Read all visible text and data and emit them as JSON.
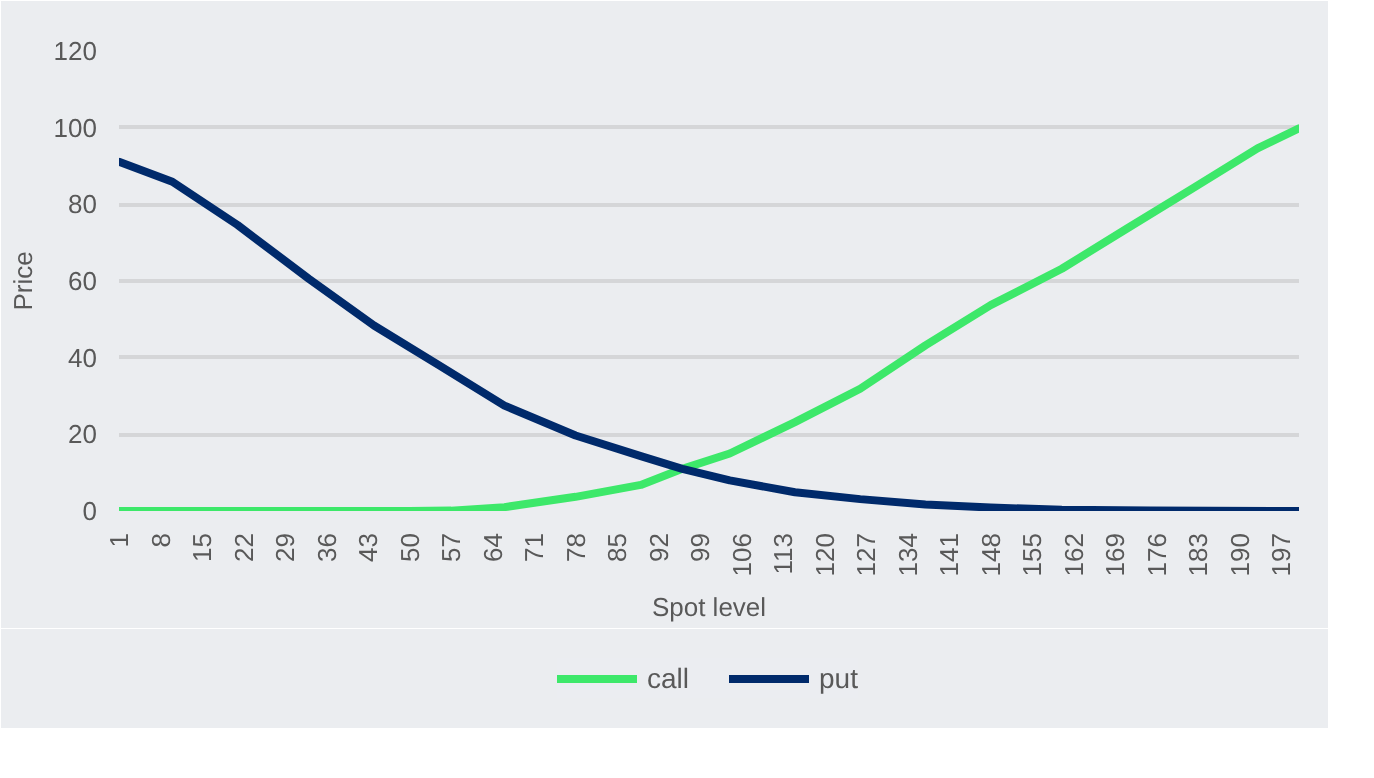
{
  "chart_data": {
    "type": "line",
    "xlabel": "Spot level",
    "ylabel": "Price",
    "xlim": [
      1,
      200
    ],
    "xticks": [
      1,
      8,
      15,
      22,
      29,
      36,
      43,
      50,
      57,
      64,
      71,
      78,
      85,
      92,
      99,
      106,
      113,
      120,
      127,
      134,
      141,
      148,
      155,
      162,
      169,
      176,
      183,
      190,
      197
    ],
    "ylim": [
      0,
      120
    ],
    "yticks": [
      0,
      20,
      40,
      60,
      80,
      100,
      120
    ],
    "grid": "y",
    "legend": "bottom",
    "line_style": "solid",
    "marker": "none",
    "series": [
      {
        "name": "call",
        "color": "#3de86a",
        "x": [
          1,
          50,
          57,
          66,
          78,
          89,
          96,
          104,
          115,
          126,
          137,
          148,
          160,
          171,
          182,
          193,
          200
        ],
        "values": [
          0,
          0,
          0.1,
          1.0,
          3.7,
          6.8,
          11.0,
          15.0,
          23.2,
          31.9,
          43.2,
          53.7,
          63.2,
          73.7,
          84.1,
          94.6,
          99.8
        ]
      },
      {
        "name": "put",
        "color": "#002a6b",
        "x": [
          1,
          10,
          21,
          33,
          44,
          55,
          66,
          78,
          89,
          96,
          104,
          115,
          126,
          137,
          148,
          160,
          175,
          200
        ],
        "values": [
          91.1,
          85.9,
          74.6,
          60.6,
          48.4,
          38.0,
          27.5,
          19.7,
          14.3,
          11.0,
          8.0,
          4.9,
          3.1,
          1.7,
          0.9,
          0.3,
          0.1,
          0
        ]
      }
    ]
  }
}
